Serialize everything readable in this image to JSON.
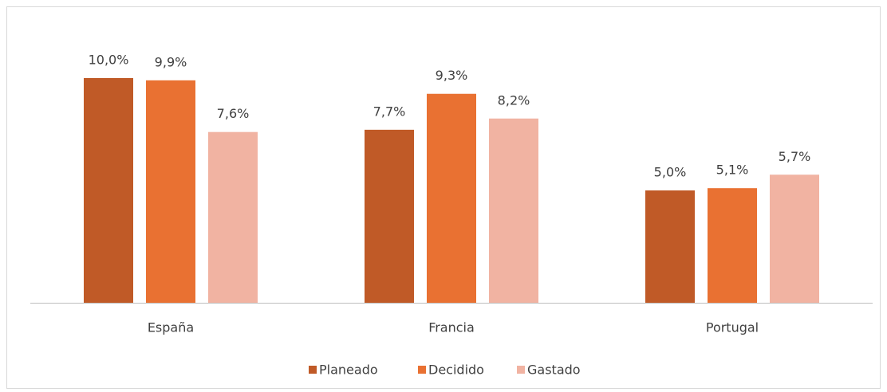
{
  "chart_data": {
    "type": "bar",
    "categories": [
      "España",
      "Francia",
      "Portugal"
    ],
    "series": [
      {
        "name": "Planeado",
        "color": "#c05a27",
        "values": [
          10.0,
          7.7,
          5.0
        ],
        "value_labels": [
          "10,0%",
          "7,7%",
          "5,0%"
        ]
      },
      {
        "name": "Decidido",
        "color": "#e97132",
        "values": [
          9.9,
          9.3,
          5.1
        ],
        "value_labels": [
          "9,9%",
          "9,3%",
          "5,1%"
        ]
      },
      {
        "name": "Gastado",
        "color": "#f1b3a2",
        "values": [
          7.6,
          8.2,
          5.7
        ],
        "value_labels": [
          "7,6%",
          "8,2%",
          "5,7%"
        ]
      }
    ],
    "legend": "bottom"
  }
}
